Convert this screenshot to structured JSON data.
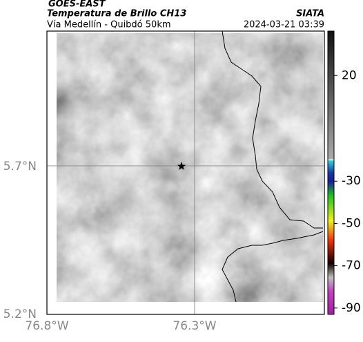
{
  "header": {
    "product": "GOES-EAST",
    "title": "Temperatura de Brillo CH13",
    "source": "SIATA",
    "subtitle": "Vía Medellín - Quibdó 50km",
    "timestamp": "2024-03-21 03:39"
  },
  "map": {
    "lat_labels": [
      "5.7°N",
      "5.2°N"
    ],
    "lon_labels": [
      "76.8°W",
      "76.3°W"
    ]
  },
  "colorbar": {
    "lim": [
      41,
      -93
    ],
    "ticks": [
      20,
      -30,
      -50,
      -70,
      -90
    ]
  }
}
